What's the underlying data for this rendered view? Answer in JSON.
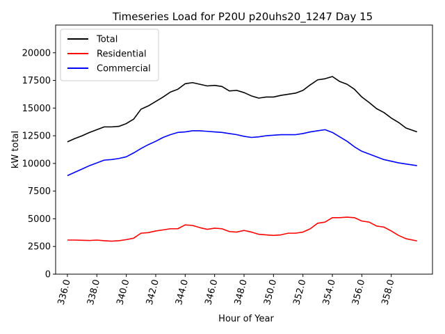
{
  "chart_data": {
    "type": "line",
    "title": "Timeseries Load for P20U p20uhs20_1247  Day 15",
    "xlabel": "Hour of Year",
    "ylabel": "kW total",
    "xlim": [
      335.2,
      360.8
    ],
    "ylim": [
      0,
      22500
    ],
    "x_ticks": [
      336,
      338,
      340,
      342,
      344,
      346,
      348,
      350,
      352,
      354,
      356,
      358
    ],
    "x_tick_labels": [
      "336.0",
      "338.0",
      "340.0",
      "342.0",
      "344.0",
      "346.0",
      "348.0",
      "350.0",
      "352.0",
      "354.0",
      "356.0",
      "358.0"
    ],
    "y_ticks": [
      0,
      2500,
      5000,
      7500,
      10000,
      12500,
      15000,
      17500,
      20000
    ],
    "y_tick_labels": [
      "0",
      "2500",
      "5000",
      "7500",
      "10000",
      "12500",
      "15000",
      "17500",
      "20000"
    ],
    "legend_position": "top-left",
    "grid": false,
    "x": [
      336,
      336.5,
      337,
      337.5,
      338,
      338.5,
      339,
      339.5,
      340,
      340.5,
      341,
      341.5,
      342,
      342.5,
      343,
      343.5,
      344,
      344.5,
      345,
      345.5,
      346,
      346.5,
      347,
      347.5,
      348,
      348.5,
      349,
      349.5,
      350,
      350.5,
      351,
      351.5,
      352,
      352.5,
      353,
      353.5,
      354,
      354.5,
      355,
      355.5,
      356,
      356.5,
      357,
      357.5,
      358,
      358.5,
      359,
      359.75
    ],
    "series": [
      {
        "name": "Total",
        "color": "#000000",
        "values": [
          11950,
          12250,
          12500,
          12800,
          13050,
          13300,
          13300,
          13350,
          13600,
          14000,
          14900,
          15200,
          15600,
          16000,
          16450,
          16700,
          17200,
          17300,
          17150,
          17000,
          17050,
          16950,
          16550,
          16600,
          16400,
          16100,
          15900,
          16000,
          16000,
          16150,
          16250,
          16350,
          16600,
          17100,
          17550,
          17650,
          17850,
          17400,
          17150,
          16700,
          16000,
          15500,
          14950,
          14600,
          14100,
          13700,
          13200,
          12850
        ]
      },
      {
        "name": "Residential",
        "color": "#ff0000",
        "values": [
          3080,
          3080,
          3060,
          3040,
          3080,
          3020,
          2980,
          3020,
          3120,
          3250,
          3700,
          3750,
          3900,
          4000,
          4100,
          4100,
          4450,
          4400,
          4200,
          4050,
          4150,
          4100,
          3850,
          3800,
          3950,
          3800,
          3600,
          3550,
          3500,
          3550,
          3700,
          3700,
          3800,
          4100,
          4600,
          4700,
          5100,
          5100,
          5150,
          5100,
          4800,
          4700,
          4350,
          4250,
          3900,
          3500,
          3200,
          3000
        ]
      },
      {
        "name": "Commercial",
        "color": "#0000ff",
        "values": [
          8900,
          9200,
          9500,
          9800,
          10050,
          10300,
          10350,
          10450,
          10600,
          10950,
          11350,
          11700,
          12000,
          12350,
          12600,
          12800,
          12850,
          12950,
          12950,
          12900,
          12850,
          12800,
          12700,
          12600,
          12450,
          12350,
          12400,
          12500,
          12550,
          12600,
          12600,
          12600,
          12700,
          12850,
          12950,
          13050,
          12800,
          12400,
          12000,
          11500,
          11100,
          10850,
          10600,
          10350,
          10200,
          10050,
          9950,
          9800
        ]
      }
    ]
  }
}
